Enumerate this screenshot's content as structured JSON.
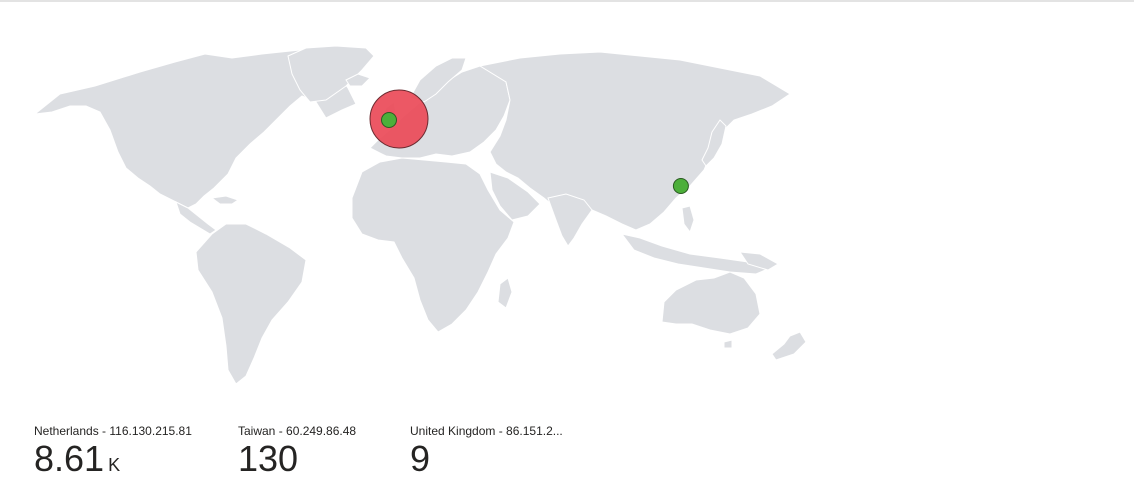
{
  "map": {
    "markers": [
      {
        "name": "Netherlands",
        "lon": 4.9,
        "lat": 52.4,
        "color": "#ea4a58",
        "size": "large"
      },
      {
        "name": "Netherlands",
        "lon": 4.9,
        "lat": 52.4,
        "color": "#4caf3a",
        "size": "small"
      },
      {
        "name": "Taiwan",
        "lon": 121.5,
        "lat": 25.0,
        "color": "#4caf3a",
        "size": "small"
      }
    ]
  },
  "stats": [
    {
      "label": "Netherlands - 116.130.215.81",
      "value": "8.61",
      "unit": "K"
    },
    {
      "label": "Taiwan - 60.249.86.48",
      "value": "130",
      "unit": ""
    },
    {
      "label": "United Kingdom - 86.151.2...",
      "value": "9",
      "unit": ""
    }
  ]
}
